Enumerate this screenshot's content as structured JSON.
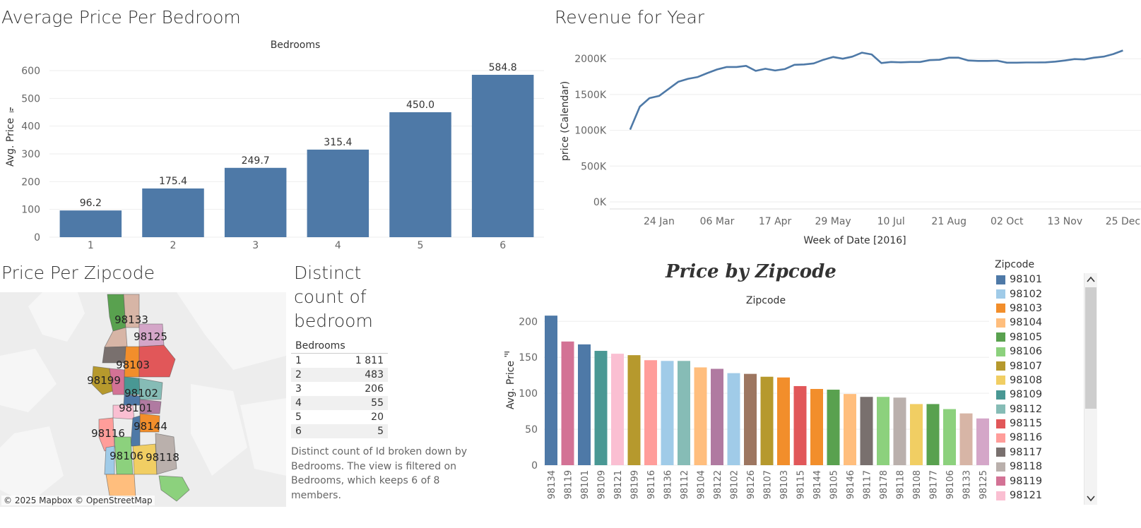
{
  "avg_price_bedroom": {
    "title": "Average Price Per Bedroom",
    "header": "Bedrooms",
    "ylabel": "Avg. Price"
  },
  "revenue": {
    "title": "Revenue for Year",
    "ylabel": "price (Calendar)",
    "xlabel": "Week of Date [2016]"
  },
  "zipcode_map": {
    "title": "Price Per Zipcode",
    "attribution": "© 2025 Mapbox © OpenStreetMap",
    "labels": [
      "98133",
      "98125",
      "98103",
      "98199",
      "98102",
      "98101",
      "98116",
      "98144",
      "98106",
      "98118"
    ]
  },
  "distinct": {
    "title_line1": "Distinct",
    "title_line2": "count of",
    "title_line3": "bedroom",
    "column_header": "Bedrooms",
    "rows": [
      {
        "bedrooms": "1",
        "count": "1 811"
      },
      {
        "bedrooms": "2",
        "count": "483"
      },
      {
        "bedrooms": "3",
        "count": "206"
      },
      {
        "bedrooms": "4",
        "count": "55"
      },
      {
        "bedrooms": "5",
        "count": "20"
      },
      {
        "bedrooms": "6",
        "count": "5"
      }
    ],
    "caption": "Distinct count of Id broken down by Bedrooms. The view is filtered on Bedrooms, which keeps 6 of 8 members."
  },
  "price_by_zip": {
    "title": "Price by Zipcode",
    "header": "Zipcode",
    "ylabel": "Avg. Price",
    "legend_title": "Zipcode",
    "legend": [
      {
        "zip": "98101",
        "color": "#4e79a7"
      },
      {
        "zip": "98102",
        "color": "#a0cbe8"
      },
      {
        "zip": "98103",
        "color": "#f28e2b"
      },
      {
        "zip": "98104",
        "color": "#ffbe7d"
      },
      {
        "zip": "98105",
        "color": "#59a14f"
      },
      {
        "zip": "98106",
        "color": "#8cd17d"
      },
      {
        "zip": "98107",
        "color": "#b6992d"
      },
      {
        "zip": "98108",
        "color": "#f1ce63"
      },
      {
        "zip": "98109",
        "color": "#499894"
      },
      {
        "zip": "98112",
        "color": "#86bcb6"
      },
      {
        "zip": "98115",
        "color": "#e15759"
      },
      {
        "zip": "98116",
        "color": "#ff9d9a"
      },
      {
        "zip": "98117",
        "color": "#79706e"
      },
      {
        "zip": "98118",
        "color": "#bab0ac"
      },
      {
        "zip": "98119",
        "color": "#d37295"
      },
      {
        "zip": "98121",
        "color": "#fabfd2"
      }
    ]
  },
  "chart_data": [
    {
      "type": "bar",
      "title": "Average Price Per Bedroom",
      "xlabel": "Bedrooms",
      "ylabel": "Avg. Price",
      "categories": [
        "1",
        "2",
        "3",
        "4",
        "5",
        "6"
      ],
      "values": [
        96.2,
        175.4,
        249.7,
        315.4,
        450.0,
        584.8
      ],
      "data_labels": [
        "96.2",
        "175.4",
        "249.7",
        "315.4",
        "450.0",
        "584.8"
      ],
      "ylim": [
        0,
        600
      ],
      "yticks": [
        0,
        100,
        200,
        300,
        400,
        500,
        600
      ],
      "color": "#4e79a7",
      "grid": true
    },
    {
      "type": "line",
      "title": "Revenue for Year",
      "xlabel": "Week of Date [2016]",
      "ylabel": "price (Calendar)",
      "x_tick_labels": [
        "24 Jan",
        "06 Mar",
        "17 Apr",
        "29 May",
        "10 Jul",
        "21 Aug",
        "02 Oct",
        "13 Nov",
        "25 Dec"
      ],
      "y_tick_labels": [
        "0K",
        "500K",
        "1000K",
        "1500K",
        "2000K"
      ],
      "y_ticks": [
        0,
        500000,
        1000000,
        1500000,
        2000000
      ],
      "ylim": [
        0,
        2150000
      ],
      "x": [
        "2016-01-03",
        "2016-01-10",
        "2016-01-17",
        "2016-01-24",
        "2016-01-31",
        "2016-02-07",
        "2016-02-14",
        "2016-02-21",
        "2016-02-28",
        "2016-03-06",
        "2016-03-13",
        "2016-03-20",
        "2016-03-27",
        "2016-04-03",
        "2016-04-10",
        "2016-04-17",
        "2016-04-24",
        "2016-05-01",
        "2016-05-08",
        "2016-05-15",
        "2016-05-22",
        "2016-05-29",
        "2016-06-05",
        "2016-06-12",
        "2016-06-19",
        "2016-06-26",
        "2016-07-03",
        "2016-07-10",
        "2016-07-17",
        "2016-07-24",
        "2016-07-31",
        "2016-08-07",
        "2016-08-14",
        "2016-08-21",
        "2016-08-28",
        "2016-09-04",
        "2016-09-11",
        "2016-09-18",
        "2016-09-25",
        "2016-10-02",
        "2016-10-09",
        "2016-10-16",
        "2016-10-23",
        "2016-10-30",
        "2016-11-06",
        "2016-11-13",
        "2016-11-20",
        "2016-11-27",
        "2016-12-04",
        "2016-12-11",
        "2016-12-18",
        "2016-12-25"
      ],
      "values": [
        1010000,
        1330000,
        1450000,
        1480000,
        1580000,
        1680000,
        1720000,
        1745000,
        1800000,
        1850000,
        1885000,
        1885000,
        1900000,
        1830000,
        1860000,
        1835000,
        1855000,
        1915000,
        1920000,
        1935000,
        1985000,
        2025000,
        2000000,
        2030000,
        2085000,
        2060000,
        1940000,
        1955000,
        1950000,
        1955000,
        1955000,
        1980000,
        1985000,
        2015000,
        2015000,
        1975000,
        1970000,
        1970000,
        1972000,
        1945000,
        1945000,
        1948000,
        1948000,
        1950000,
        1960000,
        1975000,
        1995000,
        1990000,
        2015000,
        2030000,
        2065000,
        2115000
      ],
      "color": "#4e79a7",
      "grid": true
    },
    {
      "type": "bar",
      "title": "Price by Zipcode",
      "xlabel": "Zipcode",
      "ylabel": "Avg. Price",
      "categories": [
        "98134",
        "98119",
        "98101",
        "98109",
        "98121",
        "98199",
        "98116",
        "98136",
        "98112",
        "98104",
        "98122",
        "98102",
        "98126",
        "98107",
        "98103",
        "98115",
        "98144",
        "98105",
        "98146",
        "98117",
        "98178",
        "98118",
        "98108",
        "98177",
        "98106",
        "98133",
        "98125"
      ],
      "values": [
        208,
        172,
        168,
        159,
        155,
        153,
        146,
        145,
        145,
        136,
        134,
        128,
        127,
        123,
        122,
        110,
        106,
        105,
        99,
        95,
        95,
        94,
        85,
        85,
        78,
        72,
        65
      ],
      "colors": [
        "#4e79a7",
        "#d37295",
        "#4e79a7",
        "#499894",
        "#fabfd2",
        "#b6992d",
        "#ff9d9a",
        "#a0cbe8",
        "#86bcb6",
        "#ffbe7d",
        "#b07aa1",
        "#a0cbe8",
        "#9d7660",
        "#b6992d",
        "#f28e2b",
        "#e15759",
        "#f28e2b",
        "#59a14f",
        "#ffbe7d",
        "#79706e",
        "#8cd17d",
        "#bab0ac",
        "#f1ce63",
        "#59a14f",
        "#8cd17d",
        "#d7b5a6",
        "#d4a6c8"
      ],
      "ylim": [
        0,
        215
      ],
      "yticks": [
        0,
        50,
        100,
        150,
        200
      ],
      "grid": true
    }
  ]
}
